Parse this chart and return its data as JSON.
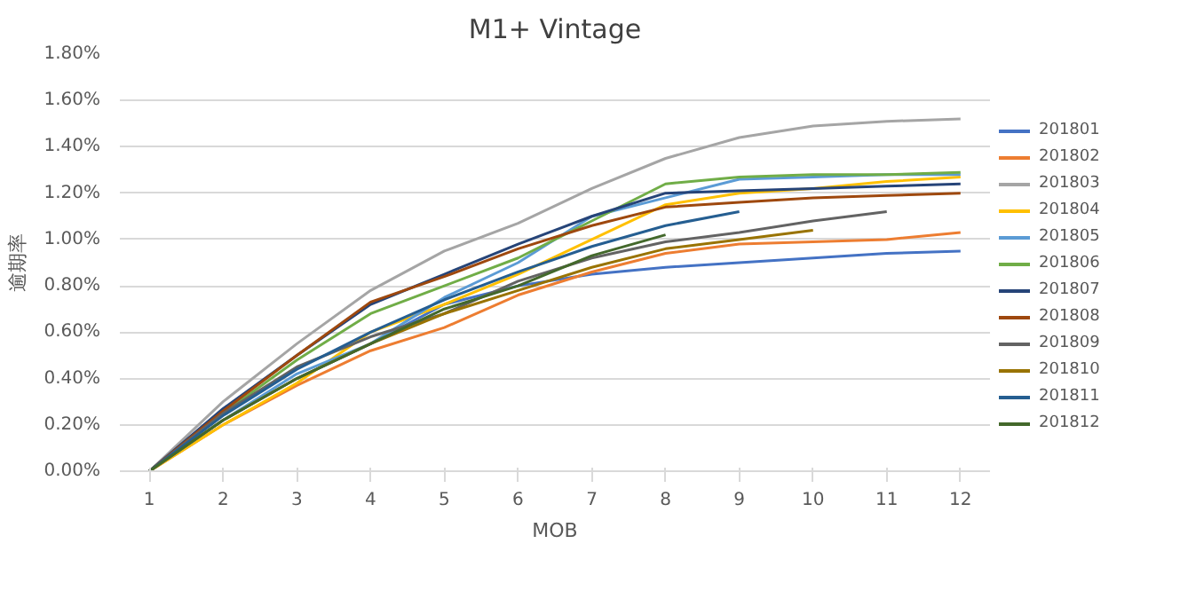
{
  "chart_data": {
    "type": "line",
    "title": "M1+ Vintage",
    "xlabel": "MOB",
    "ylabel": "逾期率",
    "x": [
      1,
      2,
      3,
      4,
      5,
      6,
      7,
      8,
      9,
      10,
      11,
      12
    ],
    "xlim": [
      0.6,
      12.4
    ],
    "xticks": [
      1,
      2,
      3,
      4,
      5,
      6,
      7,
      8,
      9,
      10,
      11,
      12
    ],
    "ylim": [
      0,
      1.8
    ],
    "yticks": [
      {
        "value": 0,
        "label": "0.00%"
      },
      {
        "value": 0.2,
        "label": "0.20%"
      },
      {
        "value": 0.4,
        "label": "0.40%"
      },
      {
        "value": 0.6,
        "label": "0.60%"
      },
      {
        "value": 0.8,
        "label": "0.80%"
      },
      {
        "value": 1.0,
        "label": "1.00%"
      },
      {
        "value": 1.2,
        "label": "1.20%"
      },
      {
        "value": 1.4,
        "label": "1.40%"
      },
      {
        "value": 1.6,
        "label": "1.60%"
      },
      {
        "value": 1.8,
        "label": "1.80%"
      }
    ],
    "grid": "y",
    "legend": "right",
    "marker": "none",
    "line_style": "solid",
    "series": [
      {
        "name": "201801",
        "color": "#4472c4",
        "values": [
          0,
          0.22,
          0.4,
          0.55,
          0.72,
          0.8,
          0.85,
          0.88,
          0.9,
          0.92,
          0.94,
          0.95
        ]
      },
      {
        "name": "201802",
        "color": "#ed7d31",
        "values": [
          0,
          0.2,
          0.37,
          0.52,
          0.62,
          0.76,
          0.86,
          0.94,
          0.98,
          0.99,
          1.0,
          1.03
        ]
      },
      {
        "name": "201803",
        "color": "#a5a5a5",
        "values": [
          0,
          0.3,
          0.55,
          0.78,
          0.95,
          1.07,
          1.22,
          1.35,
          1.44,
          1.49,
          1.51,
          1.52
        ]
      },
      {
        "name": "201804",
        "color": "#ffc000",
        "values": [
          0,
          0.2,
          0.38,
          0.6,
          0.72,
          0.85,
          1.0,
          1.15,
          1.2,
          1.22,
          1.25,
          1.27
        ]
      },
      {
        "name": "201805",
        "color": "#5b9bd5",
        "values": [
          0,
          0.22,
          0.42,
          0.55,
          0.75,
          0.9,
          1.1,
          1.18,
          1.26,
          1.27,
          1.28,
          1.28
        ]
      },
      {
        "name": "201806",
        "color": "#70ad47",
        "values": [
          0,
          0.25,
          0.48,
          0.68,
          0.8,
          0.92,
          1.08,
          1.24,
          1.27,
          1.28,
          1.28,
          1.29
        ]
      },
      {
        "name": "201807",
        "color": "#264478",
        "values": [
          0,
          0.27,
          0.5,
          0.72,
          0.85,
          0.98,
          1.1,
          1.2,
          1.21,
          1.22,
          1.23,
          1.24
        ]
      },
      {
        "name": "201808",
        "color": "#9e480e",
        "values": [
          0,
          0.26,
          0.5,
          0.73,
          0.84,
          0.96,
          1.06,
          1.14,
          1.16,
          1.18,
          1.19,
          1.2
        ]
      },
      {
        "name": "201809",
        "color": "#636363",
        "values": [
          0,
          0.25,
          0.45,
          0.58,
          0.68,
          0.82,
          0.92,
          0.99,
          1.03,
          1.08,
          1.12,
          null
        ]
      },
      {
        "name": "201810",
        "color": "#997300",
        "values": [
          0,
          0.22,
          0.4,
          0.55,
          0.68,
          0.78,
          0.88,
          0.96,
          1.0,
          1.04,
          null,
          null
        ]
      },
      {
        "name": "201811",
        "color": "#255e91",
        "values": [
          0,
          0.24,
          0.44,
          0.6,
          0.74,
          0.86,
          0.97,
          1.06,
          1.12,
          null,
          null,
          null
        ]
      },
      {
        "name": "201812",
        "color": "#43682b",
        "values": [
          0,
          0.22,
          0.4,
          0.55,
          0.7,
          0.8,
          0.93,
          1.02,
          null,
          null,
          null,
          null
        ]
      }
    ]
  }
}
